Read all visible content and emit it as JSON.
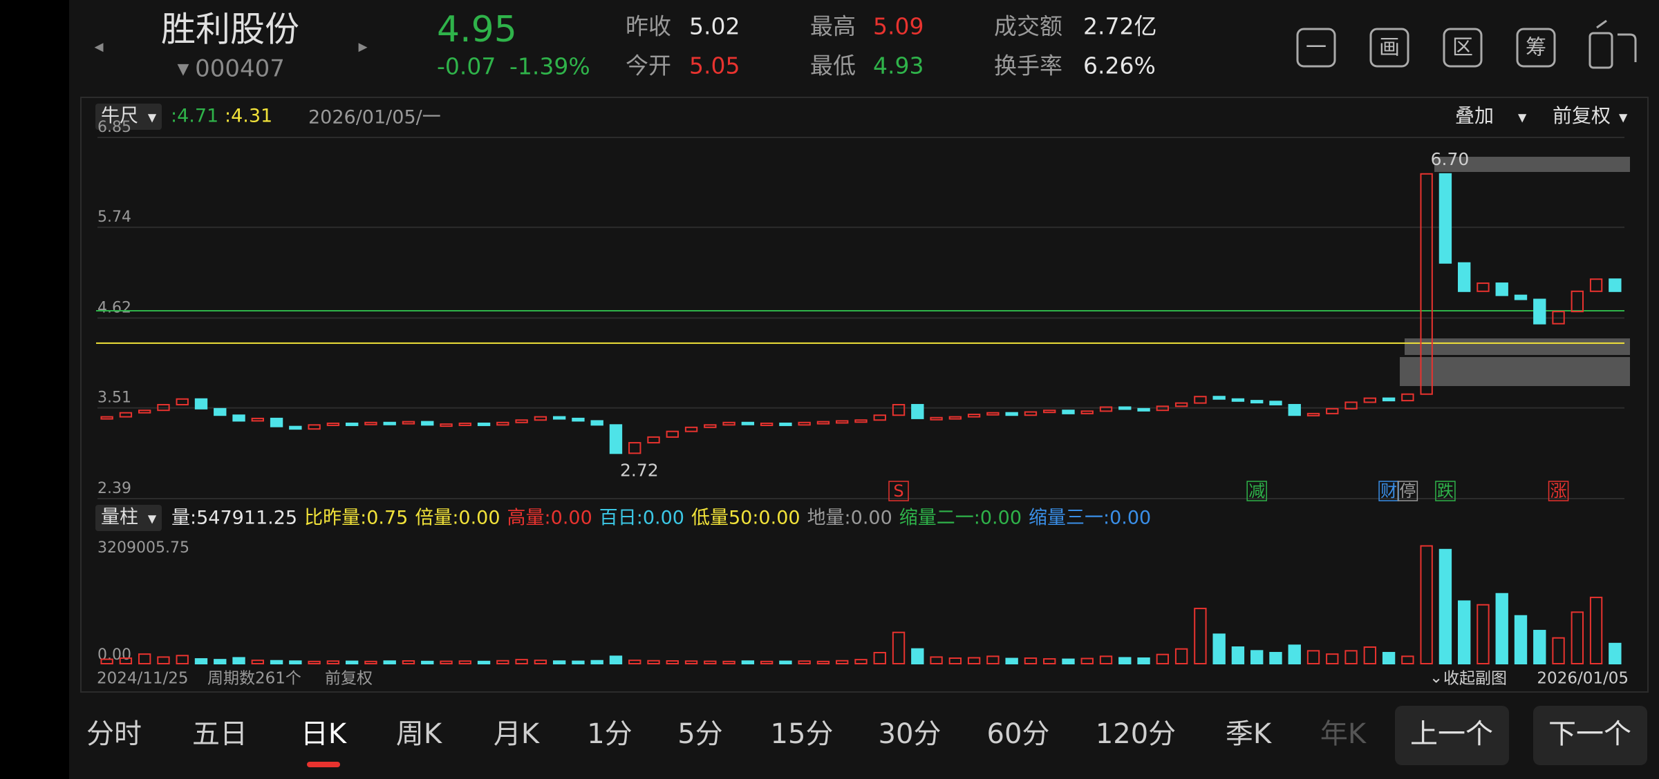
{
  "header": {
    "name": "胜利股份",
    "code": "000407",
    "price": "4.95",
    "change": "-0.07",
    "change_pct": "-1.39%",
    "stats": [
      {
        "label": "昨收",
        "value": "5.02",
        "color": "#e6e6e6"
      },
      {
        "label": "今开",
        "value": "5.05",
        "color": "#e8332f"
      },
      {
        "label": "最高",
        "value": "5.09",
        "color": "#e8332f"
      },
      {
        "label": "最低",
        "value": "4.93",
        "color": "#2fb34a"
      },
      {
        "label": "成交额",
        "value": "2.72亿",
        "color": "#e6e6e6"
      },
      {
        "label": "换手率",
        "value": "6.26%",
        "color": "#e6e6e6"
      }
    ],
    "tools": [
      "一",
      "画",
      "区",
      "筹"
    ]
  },
  "toolbar": {
    "ruler": "牛尺",
    "ruler_a": ":4.71",
    "ruler_b": ":4.31",
    "date": "2026/01/05/一",
    "overlay": "叠加",
    "adjust": "前复权"
  },
  "indicator_bar": {
    "name": "量柱",
    "items": [
      {
        "text": "量:547911.25",
        "color": "#e6e6e6"
      },
      {
        "text": "比昨量:0.75",
        "color": "#f2e33a"
      },
      {
        "text": "倍量:0.00",
        "color": "#f2e33a"
      },
      {
        "text": "高量:0.00",
        "color": "#e8332f"
      },
      {
        "text": "百日:0.00",
        "color": "#3cc8e6"
      },
      {
        "text": "低量50:0.00",
        "color": "#f2e33a"
      },
      {
        "text": "地量:0.00",
        "color": "#9a9a9a"
      },
      {
        "text": "缩量二一:0.00",
        "color": "#2fb34a"
      },
      {
        "text": "缩量三一:0.00",
        "color": "#3a8fe8"
      }
    ]
  },
  "footer": {
    "start_date": "2024/11/25",
    "periods": "周期数261个",
    "adjust": "前复权",
    "collapse": "收起副图",
    "end_date": "2026/01/05"
  },
  "tabs": [
    "分时",
    "五日",
    "日K",
    "周K",
    "月K",
    "1分",
    "5分",
    "15分",
    "30分",
    "60分",
    "120分",
    "季K",
    "年K"
  ],
  "active_tab": 2,
  "buttons": [
    "上一个",
    "下一个"
  ],
  "chart_data": [
    {
      "type": "candlestick",
      "ylim": [
        2.39,
        6.85
      ],
      "yticks": [
        2.39,
        3.51,
        4.62,
        5.74,
        6.85
      ],
      "up_color": "#e8332f",
      "down_color": "#4ee3e8",
      "ruler_lines": [
        {
          "value": 4.71,
          "color": "#2fb34a"
        },
        {
          "value": 4.31,
          "color": "#f2e33a"
        }
      ],
      "annotations": [
        {
          "text": "6.70",
          "index": 70
        },
        {
          "text": "2.72",
          "index": 27
        }
      ],
      "markers": [
        {
          "text": "S",
          "index": 42,
          "color": "#e8332f"
        },
        {
          "text": "减",
          "index": 61,
          "color": "#2fb34a"
        },
        {
          "text": "财",
          "index": 68,
          "color": "#3a8fe8"
        },
        {
          "text": "停",
          "index": 69,
          "color": "#9a9a9a"
        },
        {
          "text": "跌",
          "index": 71,
          "color": "#2fb34a"
        },
        {
          "text": "涨",
          "index": 77,
          "color": "#e8332f"
        }
      ],
      "values": [
        3.4,
        3.45,
        3.48,
        3.55,
        3.62,
        3.5,
        3.42,
        3.35,
        3.38,
        3.28,
        3.25,
        3.3,
        3.32,
        3.31,
        3.33,
        3.32,
        3.34,
        3.3,
        3.31,
        3.32,
        3.3,
        3.33,
        3.36,
        3.4,
        3.38,
        3.35,
        3.3,
        2.95,
        3.08,
        3.15,
        3.22,
        3.27,
        3.3,
        3.33,
        3.31,
        3.32,
        3.3,
        3.33,
        3.34,
        3.35,
        3.36,
        3.42,
        3.55,
        3.38,
        3.39,
        3.4,
        3.43,
        3.45,
        3.42,
        3.46,
        3.48,
        3.44,
        3.47,
        3.52,
        3.5,
        3.48,
        3.53,
        3.57,
        3.65,
        3.62,
        3.6,
        3.59,
        3.55,
        3.42,
        3.44,
        3.5,
        3.58,
        3.63,
        3.6,
        3.68,
        6.4,
        5.3,
        4.95,
        5.05,
        4.9,
        4.85,
        4.55,
        4.7,
        4.95,
        5.1,
        4.95
      ]
    },
    {
      "type": "bar",
      "ylim": [
        0,
        3209005.75
      ],
      "yticks": [
        {
          "value": 0,
          "label": "0.00"
        },
        3209005.75
      ],
      "values": [
        120000,
        150000,
        260000,
        180000,
        220000,
        130000,
        110000,
        160000,
        90000,
        80000,
        70000,
        60000,
        70000,
        65000,
        60000,
        70000,
        75000,
        60000,
        65000,
        70000,
        60000,
        80000,
        110000,
        90000,
        70000,
        65000,
        80000,
        200000,
        90000,
        80000,
        75000,
        70000,
        65000,
        60000,
        70000,
        60000,
        65000,
        70000,
        60000,
        80000,
        110000,
        300000,
        850000,
        400000,
        180000,
        150000,
        160000,
        200000,
        140000,
        150000,
        130000,
        120000,
        140000,
        200000,
        160000,
        150000,
        250000,
        400000,
        1500000,
        800000,
        450000,
        350000,
        300000,
        500000,
        350000,
        260000,
        350000,
        450000,
        300000,
        200000,
        3200000,
        3100000,
        1700000,
        1600000,
        1900000,
        1300000,
        900000,
        700000,
        1400000,
        1800000,
        547911.25
      ]
    }
  ]
}
